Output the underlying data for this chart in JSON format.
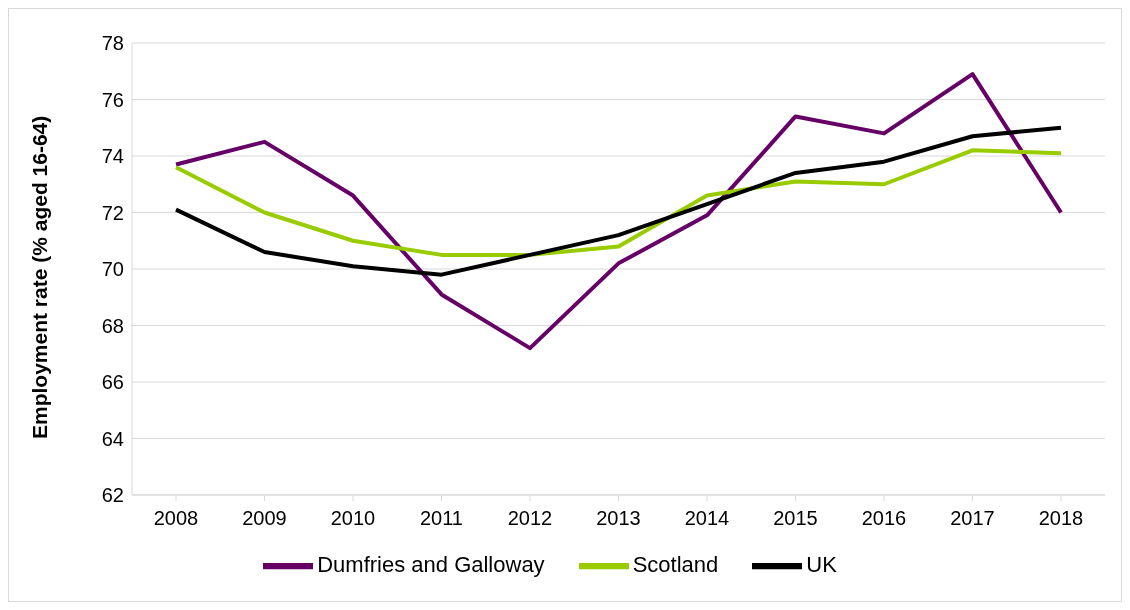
{
  "chart_data": {
    "type": "line",
    "ylabel": "Employment rate (% aged 16-64)",
    "categories": [
      "2008",
      "2009",
      "2010",
      "2011",
      "2012",
      "2013",
      "2014",
      "2015",
      "2016",
      "2017",
      "2018"
    ],
    "series": [
      {
        "name": "Dumfries and Galloway",
        "color": "#660066",
        "values": [
          73.7,
          74.5,
          72.6,
          69.1,
          67.2,
          70.2,
          71.9,
          75.4,
          74.8,
          76.9,
          72.0
        ]
      },
      {
        "name": "Scotland",
        "color": "#99cc00",
        "values": [
          73.6,
          72.0,
          71.0,
          70.5,
          70.5,
          70.8,
          72.6,
          73.1,
          73.0,
          74.2,
          74.1
        ]
      },
      {
        "name": "UK",
        "color": "#000000",
        "values": [
          72.1,
          70.6,
          70.1,
          69.8,
          70.5,
          71.2,
          72.3,
          73.4,
          73.8,
          74.7,
          75.0
        ]
      }
    ],
    "ylim": [
      62,
      78
    ],
    "yticks": [
      62,
      64,
      66,
      68,
      70,
      72,
      74,
      76,
      78
    ],
    "grid": "y",
    "legend": "bottom",
    "marker": "none",
    "line_style": "solid"
  }
}
